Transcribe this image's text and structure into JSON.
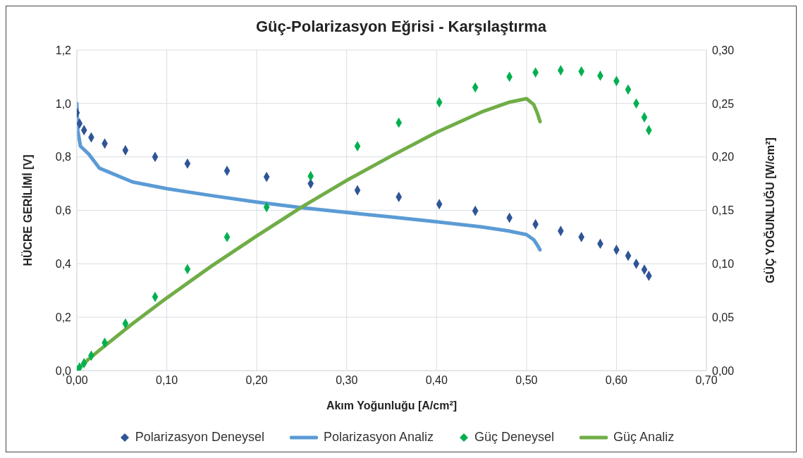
{
  "chart_data": {
    "type": "line",
    "title": "Güç-Polarizasyon Eğrisi - Karşılaştırma",
    "xlabel": "Akım Yoğunluğu [A/cm²]",
    "ylabel": "HÜCRE GERİLİMİ [V]",
    "y2label": "GÜÇ YOĞUNLUĞU [W/cm²]",
    "xlim": [
      0,
      0.7
    ],
    "xticks": [
      {
        "value": 0,
        "label": "0,00"
      },
      {
        "value": 0.1,
        "label": "0,10"
      },
      {
        "value": 0.2,
        "label": "0,20"
      },
      {
        "value": 0.3,
        "label": "0,30"
      },
      {
        "value": 0.4,
        "label": "0,40"
      },
      {
        "value": 0.5,
        "label": "0,50"
      },
      {
        "value": 0.6,
        "label": "0,60"
      },
      {
        "value": 0.7,
        "label": "0,70"
      }
    ],
    "ylim": [
      0,
      1.2
    ],
    "yticks": [
      {
        "value": 0,
        "label": "0,0"
      },
      {
        "value": 0.2,
        "label": "0,2"
      },
      {
        "value": 0.4,
        "label": "0,4"
      },
      {
        "value": 0.6,
        "label": "0,6"
      },
      {
        "value": 0.8,
        "label": "0,8"
      },
      {
        "value": 1,
        "label": "1,0"
      },
      {
        "value": 1.2,
        "label": "1,2"
      }
    ],
    "y2lim": [
      0,
      0.3
    ],
    "y2ticks": [
      {
        "value": 0,
        "label": "0,00"
      },
      {
        "value": 0.05,
        "label": "0,05"
      },
      {
        "value": 0.1,
        "label": "0,10"
      },
      {
        "value": 0.15,
        "label": "0,15"
      },
      {
        "value": 0.2,
        "label": "0,20"
      },
      {
        "value": 0.25,
        "label": "0,25"
      },
      {
        "value": 0.3,
        "label": "0,30"
      }
    ],
    "grid": true,
    "legend": "bottom",
    "line_style": "solid",
    "series": [
      {
        "name": "Polarizasyon Deneysel",
        "type": "scatter",
        "marker": "diamond",
        "color": "#2f5597",
        "x": [
          0,
          0.003,
          0.008,
          0.016,
          0.031,
          0.054,
          0.087,
          0.123,
          0.167,
          0.211,
          0.26,
          0.312,
          0.358,
          0.403,
          0.443,
          0.481,
          0.51,
          0.538,
          0.561,
          0.582,
          0.6,
          0.613,
          0.622,
          0.631,
          0.636
        ],
        "values": [
          0.965,
          0.925,
          0.9,
          0.873,
          0.85,
          0.825,
          0.8,
          0.775,
          0.748,
          0.725,
          0.7,
          0.675,
          0.65,
          0.623,
          0.598,
          0.572,
          0.548,
          0.523,
          0.5,
          0.475,
          0.452,
          0.43,
          0.4,
          0.378,
          0.355
        ]
      },
      {
        "name": "Polarizasyon Analiz",
        "type": "line",
        "marker": "none",
        "color": "#5b9bd5",
        "x": [
          0,
          0.001,
          0.004,
          0.0134,
          0.025,
          0.062,
          0.1,
          0.15,
          0.2,
          0.25,
          0.3,
          0.35,
          0.4,
          0.45,
          0.48,
          0.5,
          0.508,
          0.512,
          0.515
        ],
        "values": [
          1.0,
          0.9,
          0.84,
          0.81,
          0.758,
          0.706,
          0.681,
          0.655,
          0.631,
          0.61,
          0.592,
          0.575,
          0.557,
          0.538,
          0.523,
          0.509,
          0.49,
          0.47,
          0.452
        ]
      },
      {
        "name": "Güç Deneysel",
        "type": "scatter",
        "marker": "diamond",
        "axis": "y2",
        "color": "#00b050",
        "x": [
          0,
          0.003,
          0.008,
          0.016,
          0.031,
          0.054,
          0.087,
          0.123,
          0.167,
          0.211,
          0.26,
          0.312,
          0.358,
          0.403,
          0.443,
          0.481,
          0.51,
          0.538,
          0.561,
          0.582,
          0.6,
          0.613,
          0.622,
          0.631,
          0.636
        ],
        "values": [
          0,
          0.003,
          0.007,
          0.014,
          0.026,
          0.044,
          0.069,
          0.095,
          0.125,
          0.153,
          0.182,
          0.21,
          0.232,
          0.251,
          0.265,
          0.275,
          0.279,
          0.281,
          0.28,
          0.276,
          0.271,
          0.263,
          0.25,
          0.237,
          0.225
        ]
      },
      {
        "name": "Güç Analiz",
        "type": "line",
        "marker": "none",
        "axis": "y2",
        "color": "#70ad47",
        "x": [
          0,
          0.004,
          0.0134,
          0.025,
          0.062,
          0.1,
          0.15,
          0.2,
          0.25,
          0.3,
          0.35,
          0.4,
          0.45,
          0.48,
          0.5,
          0.508,
          0.512,
          0.515
        ],
        "values": [
          0,
          0.0034,
          0.011,
          0.019,
          0.044,
          0.068,
          0.098,
          0.126,
          0.153,
          0.178,
          0.201,
          0.223,
          0.242,
          0.251,
          0.2545,
          0.249,
          0.241,
          0.233
        ]
      }
    ]
  }
}
